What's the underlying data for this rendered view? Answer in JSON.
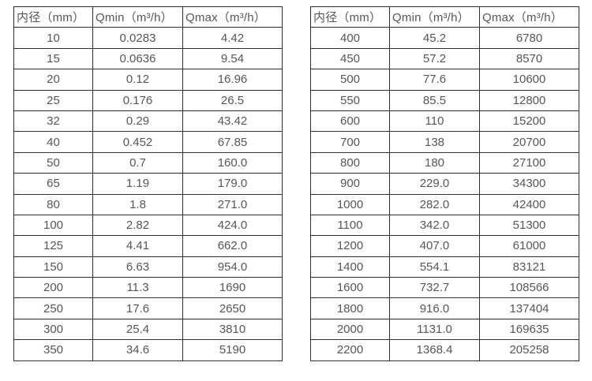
{
  "colors": {
    "border": "#2e2e2e",
    "text": "#565656",
    "background": "#ffffff"
  },
  "tables": [
    {
      "name": "flow-table-left",
      "headers": [
        "内径（mm）",
        "Qmin（m³/h）",
        "Qmax（m³/h）"
      ],
      "rows": [
        [
          "10",
          "0.0283",
          "4.42"
        ],
        [
          "15",
          "0.0636",
          "9.54"
        ],
        [
          "20",
          "0.12",
          "16.96"
        ],
        [
          "25",
          "0.176",
          "26.5"
        ],
        [
          "32",
          "0.29",
          "43.42"
        ],
        [
          "40",
          "0.452",
          "67.85"
        ],
        [
          "50",
          "0.7",
          "160.0"
        ],
        [
          "65",
          "1.19",
          "179.0"
        ],
        [
          "80",
          "1.8",
          "271.0"
        ],
        [
          "100",
          "2.82",
          "424.0"
        ],
        [
          "125",
          "4.41",
          "662.0"
        ],
        [
          "150",
          "6.63",
          "954.0"
        ],
        [
          "200",
          "11.3",
          "1690"
        ],
        [
          "250",
          "17.6",
          "2650"
        ],
        [
          "300",
          "25.4",
          "3810"
        ],
        [
          "350",
          "34.6",
          "5190"
        ]
      ]
    },
    {
      "name": "flow-table-right",
      "headers": [
        "内径（mm）",
        "Qmin（m³/h）",
        "Qmax（m³/h）"
      ],
      "rows": [
        [
          "400",
          "45.2",
          "6780"
        ],
        [
          "450",
          "57.2",
          "8570"
        ],
        [
          "500",
          "77.6",
          "10600"
        ],
        [
          "550",
          "85.5",
          "12800"
        ],
        [
          "600",
          "110",
          "15200"
        ],
        [
          "700",
          "138",
          "20700"
        ],
        [
          "800",
          "180",
          "27100"
        ],
        [
          "900",
          "229.0",
          "34300"
        ],
        [
          "1000",
          "282.0",
          "42400"
        ],
        [
          "1100",
          "342.0",
          "51300"
        ],
        [
          "1200",
          "407.0",
          "61000"
        ],
        [
          "1400",
          "554.1",
          "83121"
        ],
        [
          "1600",
          "732.7",
          "108566"
        ],
        [
          "1800",
          "916.0",
          "137404"
        ],
        [
          "2000",
          "1131.0",
          "169635"
        ],
        [
          "2200",
          "1368.4",
          "205258"
        ]
      ]
    }
  ]
}
